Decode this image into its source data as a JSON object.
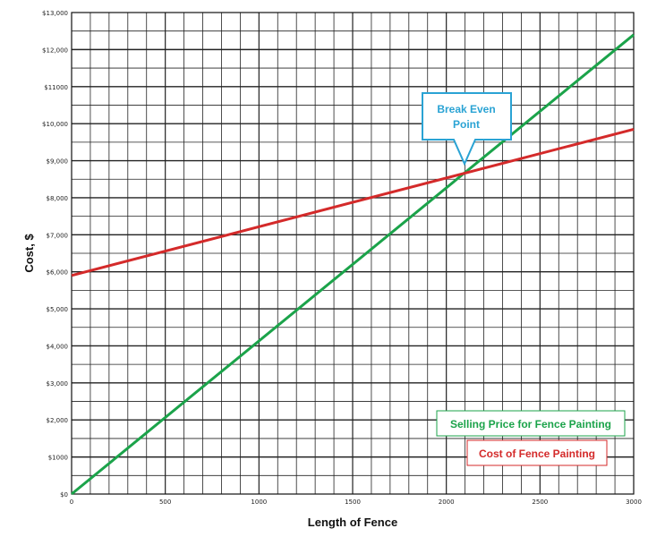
{
  "chart_data": {
    "type": "line",
    "xlabel": "Length of Fence",
    "ylabel": "Cost, $",
    "xlim": [
      0,
      3000
    ],
    "ylim": [
      0,
      13000
    ],
    "x_ticks": [
      "0",
      "500",
      "1000",
      "1500",
      "2000",
      "2500",
      "3000"
    ],
    "y_ticks": [
      "$0",
      "$1000",
      "$2,000",
      "$3,000",
      "$4,000",
      "$5,000",
      "$6,000",
      "$7,000",
      "$8,000",
      "$9,000",
      "$10,000",
      "$11000",
      "$12,000",
      "$13,000"
    ],
    "grid": true,
    "series": [
      {
        "name": "Selling Price for Fence Painting",
        "color": "#1ba34a",
        "x": [
          0,
          3000
        ],
        "y": [
          0,
          12400
        ]
      },
      {
        "name": "Cost of Fence Painting",
        "color": "#d42a2a",
        "x": [
          0,
          3000
        ],
        "y": [
          5900,
          9850
        ]
      }
    ],
    "annotations": [
      {
        "text_line1": "Break Even",
        "text_line2": "Point",
        "color": "#2aa3d4"
      }
    ],
    "legend_placement": "bottom-right"
  }
}
